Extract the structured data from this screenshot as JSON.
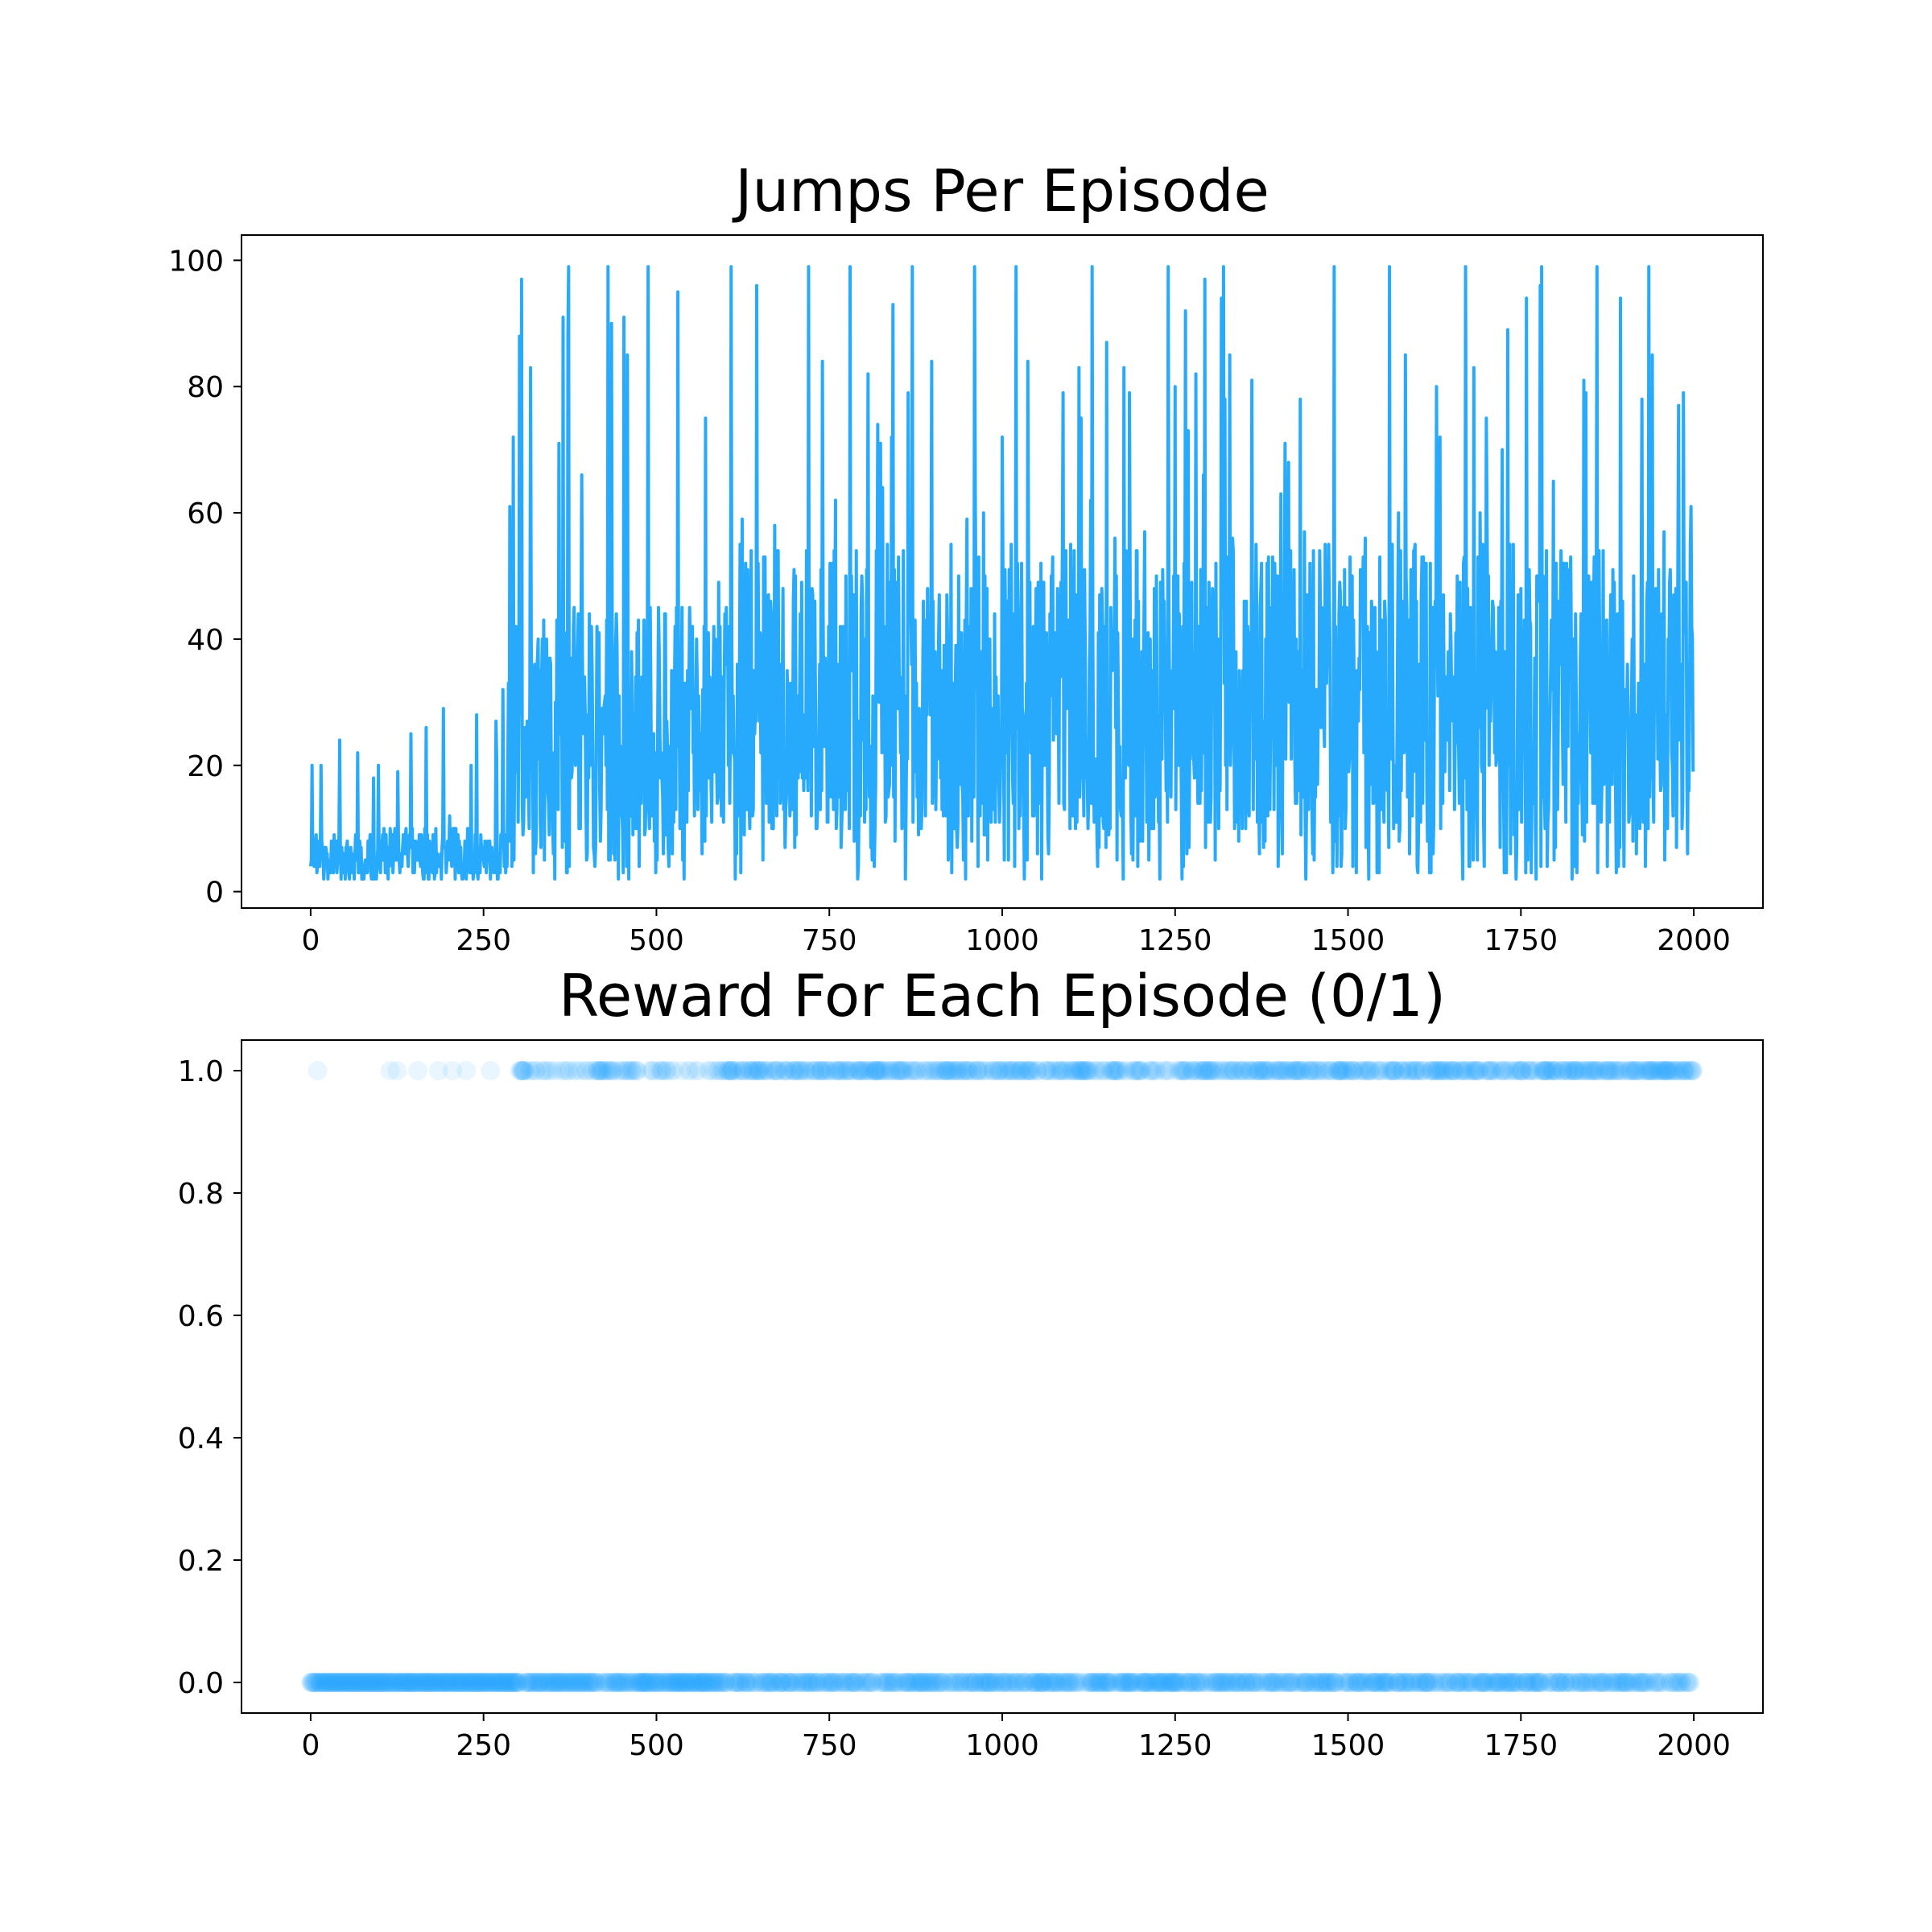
{
  "figure": {
    "background": "#ffffff",
    "series_color": "#27aafc"
  },
  "chart_data": [
    {
      "id": "jumps",
      "type": "line",
      "title": "Jumps Per Episode",
      "xlabel": "",
      "ylabel": "",
      "xlim": [
        -100,
        2100
      ],
      "ylim": [
        -2.6,
        104.0
      ],
      "xticks": [
        0,
        250,
        500,
        750,
        1000,
        1250,
        1500,
        1750,
        2000
      ],
      "xtick_labels": [
        "0",
        "250",
        "500",
        "750",
        "1000",
        "1250",
        "1500",
        "1750",
        "2000"
      ],
      "yticks": [
        0,
        20,
        40,
        60,
        80,
        100
      ],
      "ytick_labels": [
        "0",
        "20",
        "40",
        "60",
        "80",
        "100"
      ],
      "grid": false,
      "legend": "none",
      "n_episodes": 2000,
      "series": [
        {
          "color": "#27aafc",
          "phases": [
            {
              "x_from": 0,
              "x_to": 285,
              "min": 2,
              "max": 32,
              "typical_low": 2,
              "typical_high": 10
            },
            {
              "x_from": 285,
              "x_to": 600,
              "min": 2,
              "max": 99,
              "typical_low": 8,
              "typical_high": 45
            },
            {
              "x_from": 600,
              "x_to": 2000,
              "min": 2,
              "max": 99,
              "typical_low": 10,
              "typical_high": 55
            }
          ],
          "peaks": [
            {
              "x": 2,
              "y": 20
            },
            {
              "x": 15,
              "y": 20
            },
            {
              "x": 68,
              "y": 22
            },
            {
              "x": 145,
              "y": 25
            },
            {
              "x": 192,
              "y": 29
            },
            {
              "x": 268,
              "y": 27
            },
            {
              "x": 278,
              "y": 32
            },
            {
              "x": 288,
              "y": 61
            },
            {
              "x": 302,
              "y": 88
            },
            {
              "x": 318,
              "y": 83
            },
            {
              "x": 430,
              "y": 99
            },
            {
              "x": 488,
              "y": 99
            },
            {
              "x": 458,
              "y": 85
            },
            {
              "x": 645,
              "y": 96
            },
            {
              "x": 720,
              "y": 99
            },
            {
              "x": 780,
              "y": 99
            },
            {
              "x": 870,
              "y": 99
            },
            {
              "x": 960,
              "y": 99
            },
            {
              "x": 1020,
              "y": 99
            },
            {
              "x": 1130,
              "y": 99
            },
            {
              "x": 1240,
              "y": 99
            },
            {
              "x": 1320,
              "y": 99
            },
            {
              "x": 1480,
              "y": 99
            },
            {
              "x": 1560,
              "y": 99
            },
            {
              "x": 1670,
              "y": 99
            },
            {
              "x": 1780,
              "y": 99
            },
            {
              "x": 1860,
              "y": 99
            },
            {
              "x": 1935,
              "y": 99
            },
            {
              "x": 1985,
              "y": 79
            },
            {
              "x": 1996,
              "y": 61
            }
          ],
          "troughs": [
            {
              "x": 540,
              "y": 2
            },
            {
              "x": 860,
              "y": 2
            },
            {
              "x": 1175,
              "y": 2
            },
            {
              "x": 1260,
              "y": 2
            },
            {
              "x": 1530,
              "y": 2
            },
            {
              "x": 1930,
              "y": 4
            }
          ],
          "last_value": 19
        }
      ]
    },
    {
      "id": "reward",
      "type": "scatter",
      "title": "Reward For Each Episode (0/1)",
      "xlabel": "",
      "ylabel": "",
      "xlim": [
        -100,
        2100
      ],
      "ylim": [
        -0.05,
        1.05
      ],
      "xticks": [
        0,
        250,
        500,
        750,
        1000,
        1250,
        1500,
        1750,
        2000
      ],
      "xtick_labels": [
        "0",
        "250",
        "500",
        "750",
        "1000",
        "1250",
        "1500",
        "1750",
        "2000"
      ],
      "yticks": [
        0.0,
        0.2,
        0.4,
        0.6,
        0.8,
        1.0
      ],
      "ytick_labels": [
        "0.0",
        "0.2",
        "0.4",
        "0.6",
        "0.8",
        "1.0"
      ],
      "grid": false,
      "legend": "none",
      "marker_alpha": 0.1,
      "n_episodes": 2000,
      "values_domain": [
        0,
        1
      ],
      "success_episodes_early": [
        10,
        115,
        125,
        155,
        185,
        205,
        225,
        260,
        285
      ],
      "success_rate_by_range": [
        {
          "x_from": 0,
          "x_to": 285,
          "rate": 0.03
        },
        {
          "x_from": 285,
          "x_to": 600,
          "rate": 0.25
        },
        {
          "x_from": 600,
          "x_to": 2000,
          "rate": 0.45
        }
      ],
      "series": [
        {
          "color": "#27aafc"
        }
      ]
    }
  ]
}
